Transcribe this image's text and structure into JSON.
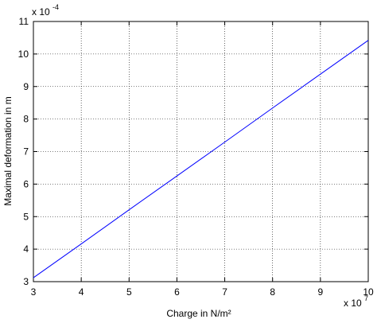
{
  "chart_data": {
    "type": "line",
    "x_label": "Charge in N/m²",
    "y_label": "Maximal deformation in m",
    "x_multiplier": {
      "base": "x 10",
      "exponent": "7"
    },
    "y_multiplier": {
      "base": "x 10",
      "exponent": "-4"
    },
    "x": [
      3,
      4,
      5,
      6,
      7,
      8,
      9,
      10
    ],
    "series": [
      {
        "color": "#0000ff",
        "values": [
          3.12,
          4.16,
          5.21,
          6.25,
          7.29,
          8.34,
          9.38,
          10.42
        ]
      }
    ],
    "xlim": [
      3,
      10
    ],
    "ylim": [
      3,
      11
    ],
    "xticks": [
      3,
      4,
      5,
      6,
      7,
      8,
      9,
      10
    ],
    "yticks": [
      3,
      4,
      5,
      6,
      7,
      8,
      9,
      10,
      11
    ],
    "grid": true
  }
}
